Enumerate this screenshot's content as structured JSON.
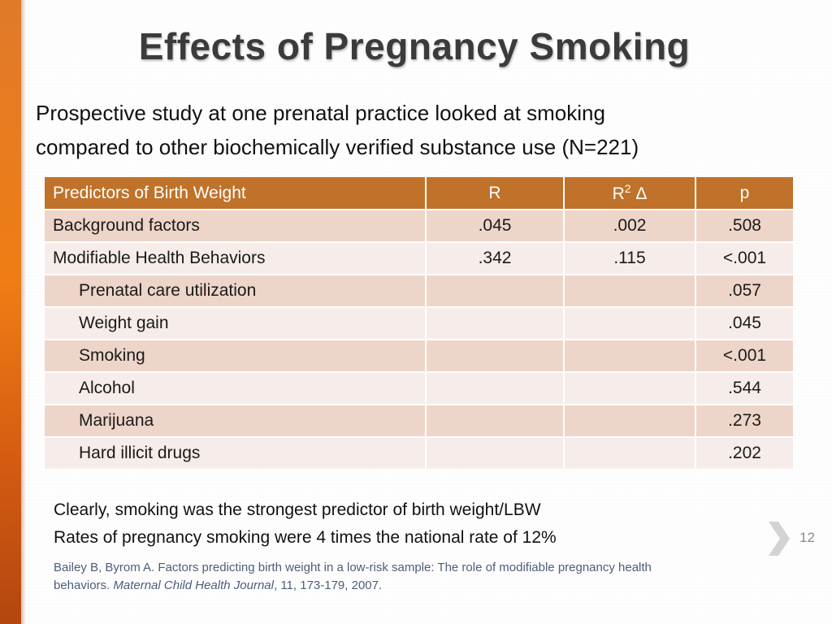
{
  "slide": {
    "title": "Effects of Pregnancy Smoking",
    "intro": [
      "Prospective study at one prenatal practice looked at smoking",
      "compared to other biochemically verified substance use (N=221)"
    ],
    "table": {
      "headers": {
        "label": "Predictors of Birth Weight",
        "r": "R",
        "r2_base": "R",
        "r2_sup": "2",
        "r2_delta": " Δ",
        "p": "p"
      },
      "rows": [
        {
          "label": "Background factors",
          "r": ".045",
          "r2": ".002",
          "p": ".508"
        },
        {
          "label": "Modifiable Health Behaviors",
          "r": ".342",
          "r2": ".115",
          "p": "<.001"
        },
        {
          "label": "Prenatal care utilization",
          "r": "",
          "r2": "",
          "p": ".057"
        },
        {
          "label": "Weight gain",
          "r": "",
          "r2": "",
          "p": ".045"
        },
        {
          "label": "Smoking",
          "r": "",
          "r2": "",
          "p": "<.001"
        },
        {
          "label": "Alcohol",
          "r": "",
          "r2": "",
          "p": ".544"
        },
        {
          "label": "Marijuana",
          "r": "",
          "r2": "",
          "p": ".273"
        },
        {
          "label": "Hard illicit drugs",
          "r": "",
          "r2": "",
          "p": ".202"
        }
      ]
    },
    "conclusion": [
      "Clearly, smoking was the strongest predictor of birth weight/LBW",
      "Rates of pregnancy smoking were 4 times the national rate of 12%"
    ],
    "citation": {
      "line1": "Bailey B, Byrom A. Factors predicting birth weight in a low-risk sample: The role of modifiable pregnancy health",
      "line2_prefix": "behaviors. ",
      "journal": "Maternal Child Health Journal",
      "line2_suffix": ", 11, 173-179, 2007."
    },
    "slide_number": "12"
  },
  "colors": {
    "accent_orange": "#ef7d14",
    "header_bg": "#c0722a",
    "row_dark": "#eed5c9",
    "row_light": "#f6ecea",
    "citation_text": "#4d5d7a"
  },
  "icons": [
    "chevron-right-icon"
  ]
}
